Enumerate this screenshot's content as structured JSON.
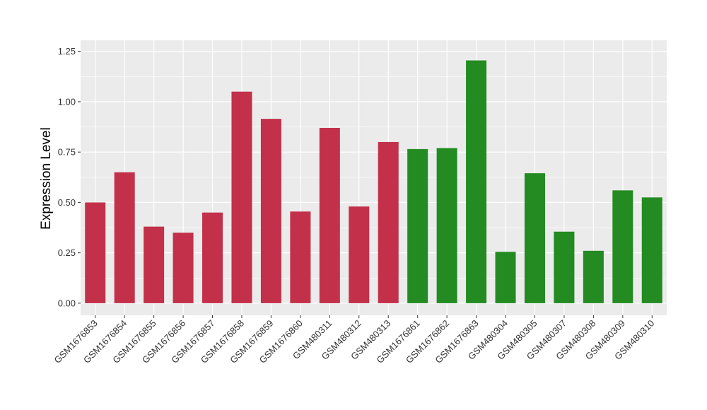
{
  "chart_data": {
    "type": "bar",
    "title": "",
    "xlabel": "",
    "ylabel": "Expression Level",
    "ylim": [
      -0.06,
      1.305
    ],
    "yticks": [
      "0.00",
      "0.25",
      "0.50",
      "0.75",
      "1.00",
      "1.25"
    ],
    "grid": true,
    "legend": "none",
    "colors": {
      "group_a": "#C3304A",
      "group_b": "#238B22",
      "panel": "#EBEBEB",
      "grid": "#FFFFFF"
    },
    "categories": [
      "GSM1676853",
      "GSM1676854",
      "GSM1676855",
      "GSM1676856",
      "GSM1676857",
      "GSM1676858",
      "GSM1676859",
      "GSM1676860",
      "GSM480311",
      "GSM480312",
      "GSM480313",
      "GSM1676861",
      "GSM1676862",
      "GSM1676863",
      "GSM480304",
      "GSM480305",
      "GSM480307",
      "GSM480308",
      "GSM480309",
      "GSM480310"
    ],
    "values": [
      0.5,
      0.65,
      0.38,
      0.35,
      0.45,
      1.05,
      0.915,
      0.455,
      0.87,
      0.48,
      0.8,
      0.765,
      0.77,
      1.205,
      0.255,
      0.645,
      0.355,
      0.26,
      0.56,
      0.525
    ],
    "groups": [
      "a",
      "a",
      "a",
      "a",
      "a",
      "a",
      "a",
      "a",
      "a",
      "a",
      "a",
      "b",
      "b",
      "b",
      "b",
      "b",
      "b",
      "b",
      "b",
      "b"
    ]
  }
}
